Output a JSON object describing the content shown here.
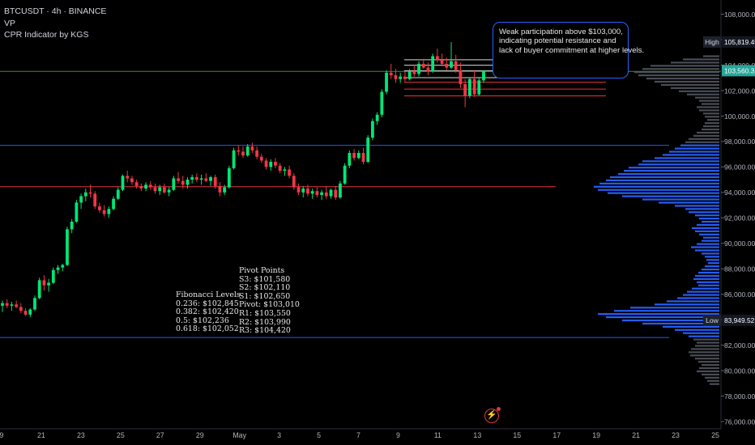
{
  "legend": {
    "symbol_line": "BTCUSDT · 4h · BINANCE",
    "indicator_vp": "VP",
    "indicator_cpr": "CPR Indicator by KGS"
  },
  "annotation": {
    "lines": [
      "Weak participation above $103,000,",
      "indicating potential resistance and",
      "lack of buyer commitment at higher levels."
    ]
  },
  "fibonacci": {
    "title": "Fibonacci Levels",
    "lines": [
      "0.236: $102,845",
      "0.382: $102,420",
      "0.5: $102,236",
      "0.618: $102,052"
    ]
  },
  "pivots": {
    "title": "Pivot Points",
    "lines": [
      "S3: $101,580",
      "S2: $102,110",
      "S1: $102,650",
      "Pivot: $103,010",
      "R1: $103,550",
      "R2: $103,990",
      "R3: $104,420"
    ]
  },
  "chart_data": {
    "type": "candlestick",
    "symbol": "BTCUSDT",
    "interval": "4h",
    "exchange": "BINANCE",
    "y_axis": {
      "range": [
        75900,
        109000
      ],
      "ticks": [
        76000,
        78000,
        80000,
        82000,
        84000,
        86000,
        88000,
        90000,
        92000,
        94000,
        96000,
        98000,
        100000,
        102000,
        104000,
        106000,
        108000
      ],
      "tick_labels": [
        "76,000.00",
        "78,000.00",
        "80,000.00",
        "82,000.00",
        "84,000.00",
        "86,000.00",
        "88,000.00",
        "90,000.00",
        "92,000.00",
        "94,000.00",
        "96,000.00",
        "98,000.00",
        "100,000.00",
        "102,000.00",
        "104,000.00",
        "106,000.00",
        "108,000.00"
      ]
    },
    "x_axis": {
      "labels": [
        "9",
        "21",
        "23",
        "25",
        "27",
        "29",
        "May",
        "3",
        "5",
        "7",
        "9",
        "11",
        "13",
        "15",
        "17",
        "19",
        "21",
        "23",
        "25"
      ]
    },
    "price_tags": [
      {
        "label": "High",
        "value": 105819.45,
        "text": "105,819.45",
        "color": "#131722"
      },
      {
        "label": "",
        "value": 103560.31,
        "text": "103,560.31",
        "color": "#26a69a"
      },
      {
        "label": "Low",
        "value": 83949.52,
        "text": "83,949.52",
        "color": "#131722"
      }
    ],
    "horizontal_lines": [
      {
        "value": 104420,
        "color": "#e6e6e6",
        "extends": "partial"
      },
      {
        "value": 103990,
        "color": "#e6e6e6",
        "extends": "partial"
      },
      {
        "value": 103550,
        "color": "#e6e6e6",
        "extends": "partial"
      },
      {
        "value": 103500,
        "color": "#4caf50",
        "extends": "full"
      },
      {
        "value": 103010,
        "color": "#e6e6e6",
        "extends": "partial"
      },
      {
        "value": 102650,
        "color": "#f23645",
        "extends": "partial"
      },
      {
        "value": 102110,
        "color": "#f23645",
        "extends": "partial"
      },
      {
        "value": 101580,
        "color": "#f23645",
        "extends": "partial"
      },
      {
        "value": 97700,
        "color": "#2962ff",
        "extends": "full"
      },
      {
        "value": 94450,
        "color": "#f23645",
        "extends": "full"
      },
      {
        "value": 82600,
        "color": "#2962ff",
        "extends": "full"
      }
    ],
    "colors": {
      "up": "#00e676",
      "down": "#f23645",
      "volume_profile": "#2962ff",
      "volume_profile_dim": "#5d606b"
    },
    "ohlc": [
      [
        85100,
        85500,
        84600,
        85300
      ],
      [
        85300,
        85600,
        84900,
        85100
      ],
      [
        85100,
        85400,
        84700,
        85200
      ],
      [
        85200,
        85500,
        84900,
        85000
      ],
      [
        85000,
        85300,
        84500,
        84700
      ],
      [
        84700,
        84900,
        84300,
        84400
      ],
      [
        84400,
        84900,
        84200,
        84800
      ],
      [
        84800,
        85900,
        84700,
        85700
      ],
      [
        85700,
        87300,
        85600,
        87100
      ],
      [
        87100,
        87500,
        86300,
        86700
      ],
      [
        86700,
        87200,
        86200,
        86900
      ],
      [
        86900,
        88100,
        86800,
        87900
      ],
      [
        87900,
        88300,
        87600,
        88100
      ],
      [
        88100,
        88400,
        87800,
        88300
      ],
      [
        88300,
        91300,
        88200,
        91100
      ],
      [
        91100,
        91900,
        90800,
        91700
      ],
      [
        91700,
        93400,
        91600,
        93200
      ],
      [
        93200,
        93900,
        92700,
        93700
      ],
      [
        93700,
        94300,
        93300,
        94000
      ],
      [
        94000,
        94600,
        93600,
        93900
      ],
      [
        93900,
        94100,
        92700,
        92900
      ],
      [
        92900,
        93200,
        92400,
        92600
      ],
      [
        92600,
        93000,
        92100,
        92300
      ],
      [
        92300,
        92900,
        92000,
        92700
      ],
      [
        92700,
        93700,
        92600,
        93500
      ],
      [
        93500,
        94400,
        93400,
        94200
      ],
      [
        94200,
        95400,
        94100,
        95300
      ],
      [
        95300,
        95700,
        94800,
        95100
      ],
      [
        95100,
        95300,
        94600,
        94800
      ],
      [
        94800,
        95000,
        94300,
        94500
      ],
      [
        94500,
        94700,
        94100,
        94300
      ],
      [
        94300,
        94800,
        94100,
        94600
      ],
      [
        94600,
        94900,
        94200,
        94400
      ],
      [
        94400,
        94700,
        93900,
        94100
      ],
      [
        94100,
        94600,
        93800,
        94400
      ],
      [
        94400,
        94700,
        93900,
        94000
      ],
      [
        94000,
        94400,
        93700,
        94200
      ],
      [
        94200,
        95300,
        94100,
        95100
      ],
      [
        95100,
        95600,
        94700,
        94900
      ],
      [
        94900,
        95300,
        94300,
        94600
      ],
      [
        94600,
        95200,
        94300,
        95000
      ],
      [
        95000,
        95400,
        94700,
        95200
      ],
      [
        95200,
        95500,
        94800,
        95000
      ],
      [
        95000,
        95400,
        94600,
        95100
      ],
      [
        95100,
        95500,
        94800,
        94900
      ],
      [
        94900,
        95300,
        94500,
        95200
      ],
      [
        95200,
        95400,
        94300,
        94500
      ],
      [
        94500,
        94800,
        93700,
        94000
      ],
      [
        94000,
        94600,
        93800,
        94400
      ],
      [
        94400,
        96100,
        94300,
        95900
      ],
      [
        95900,
        97500,
        95800,
        97300
      ],
      [
        97300,
        97700,
        96900,
        97200
      ],
      [
        97200,
        97600,
        96700,
        96900
      ],
      [
        96900,
        97800,
        96800,
        97600
      ],
      [
        97600,
        97900,
        97100,
        97300
      ],
      [
        97300,
        97600,
        96600,
        96800
      ],
      [
        96800,
        97000,
        96300,
        96500
      ],
      [
        96500,
        96700,
        95800,
        96000
      ],
      [
        96000,
        96600,
        95700,
        96400
      ],
      [
        96400,
        96700,
        95900,
        96100
      ],
      [
        96100,
        96300,
        95500,
        95700
      ],
      [
        95700,
        96000,
        95300,
        95800
      ],
      [
        95800,
        96100,
        95100,
        95300
      ],
      [
        95300,
        95500,
        94200,
        94400
      ],
      [
        94400,
        94700,
        93800,
        94000
      ],
      [
        94000,
        94500,
        93600,
        94300
      ],
      [
        94300,
        94600,
        93700,
        93900
      ],
      [
        93900,
        94300,
        93500,
        94100
      ],
      [
        94100,
        94400,
        93600,
        93800
      ],
      [
        93800,
        94200,
        93400,
        94000
      ],
      [
        94000,
        94500,
        93500,
        93700
      ],
      [
        93700,
        94300,
        93500,
        94200
      ],
      [
        94200,
        94500,
        93400,
        93600
      ],
      [
        93600,
        94900,
        93500,
        94700
      ],
      [
        94700,
        96300,
        94600,
        96100
      ],
      [
        96100,
        97300,
        95900,
        97100
      ],
      [
        97100,
        97400,
        96500,
        96700
      ],
      [
        96700,
        97300,
        96600,
        97100
      ],
      [
        97100,
        97500,
        96200,
        96400
      ],
      [
        96400,
        98500,
        96300,
        98300
      ],
      [
        98300,
        99800,
        98100,
        99600
      ],
      [
        99600,
        100300,
        99300,
        100100
      ],
      [
        100100,
        102100,
        99900,
        101900
      ],
      [
        101900,
        103600,
        101700,
        103400
      ],
      [
        103400,
        104100,
        102900,
        103200
      ],
      [
        103200,
        103700,
        102600,
        102900
      ],
      [
        102900,
        103400,
        102600,
        103100
      ],
      [
        103100,
        103500,
        102700,
        102900
      ],
      [
        102900,
        103700,
        102800,
        103500
      ],
      [
        103500,
        104000,
        103100,
        103300
      ],
      [
        103300,
        104300,
        103100,
        104100
      ],
      [
        104100,
        104500,
        103700,
        103800
      ],
      [
        103800,
        104200,
        103200,
        103500
      ],
      [
        103500,
        104900,
        103400,
        104700
      ],
      [
        104700,
        105300,
        104200,
        104400
      ],
      [
        104400,
        104900,
        103900,
        104100
      ],
      [
        104100,
        104600,
        103600,
        103800
      ],
      [
        103800,
        105800,
        103700,
        104300
      ],
      [
        104300,
        104800,
        103400,
        103600
      ],
      [
        103600,
        104200,
        102200,
        102500
      ],
      [
        102500,
        102900,
        100700,
        101600
      ],
      [
        101600,
        103000,
        101400,
        102900
      ],
      [
        102900,
        103600,
        101500,
        101700
      ],
      [
        101700,
        103000,
        101600,
        102800
      ],
      [
        102800,
        103600,
        102600,
        103560
      ]
    ],
    "volume_profile": [
      [
        104700,
        20,
        "dim"
      ],
      [
        104450,
        45,
        "dim"
      ],
      [
        104200,
        60,
        "dim"
      ],
      [
        103950,
        85,
        "dim"
      ],
      [
        103700,
        95,
        "dim"
      ],
      [
        103450,
        105,
        "dim"
      ],
      [
        103200,
        100,
        "dim"
      ],
      [
        102950,
        90,
        "dim"
      ],
      [
        102700,
        80,
        "dim"
      ],
      [
        102450,
        72,
        "dim"
      ],
      [
        102200,
        60,
        "dim"
      ],
      [
        101950,
        50,
        "dim"
      ],
      [
        101700,
        40,
        "dim"
      ],
      [
        101450,
        30,
        "dim"
      ],
      [
        101200,
        25,
        "dim"
      ],
      [
        100950,
        22,
        "dim"
      ],
      [
        100700,
        28,
        "dim"
      ],
      [
        100450,
        25,
        "dim"
      ],
      [
        100200,
        20,
        "dim"
      ],
      [
        99950,
        18,
        "dim"
      ],
      [
        99700,
        15,
        "dim"
      ],
      [
        99450,
        18,
        "dim"
      ],
      [
        99200,
        20,
        "dim"
      ],
      [
        98950,
        22,
        "dim"
      ],
      [
        98700,
        28,
        "dim"
      ],
      [
        98450,
        32,
        "dim"
      ],
      [
        98200,
        38,
        "dim"
      ],
      [
        97950,
        42,
        "dim"
      ],
      [
        97700,
        48,
        "blue"
      ],
      [
        97450,
        55,
        "blue"
      ],
      [
        97200,
        62,
        "blue"
      ],
      [
        96950,
        70,
        "blue"
      ],
      [
        96700,
        80,
        "blue"
      ],
      [
        96450,
        95,
        "blue"
      ],
      [
        96200,
        100,
        "blue"
      ],
      [
        95950,
        112,
        "blue"
      ],
      [
        95700,
        118,
        "blue"
      ],
      [
        95450,
        125,
        "blue"
      ],
      [
        95200,
        135,
        "blue"
      ],
      [
        94950,
        140,
        "blue"
      ],
      [
        94700,
        148,
        "blue"
      ],
      [
        94450,
        155,
        "blue"
      ],
      [
        94200,
        150,
        "blue"
      ],
      [
        93950,
        138,
        "blue"
      ],
      [
        93700,
        120,
        "blue"
      ],
      [
        93450,
        95,
        "blue"
      ],
      [
        93200,
        75,
        "blue"
      ],
      [
        92950,
        55,
        "blue"
      ],
      [
        92700,
        42,
        "blue"
      ],
      [
        92450,
        38,
        "blue"
      ],
      [
        92200,
        30,
        "blue"
      ],
      [
        91950,
        25,
        "blue"
      ],
      [
        91700,
        22,
        "blue"
      ],
      [
        91450,
        28,
        "blue"
      ],
      [
        91200,
        34,
        "blue"
      ],
      [
        90950,
        30,
        "blue"
      ],
      [
        90700,
        25,
        "blue"
      ],
      [
        90450,
        20,
        "blue"
      ],
      [
        90200,
        22,
        "blue"
      ],
      [
        89950,
        28,
        "blue"
      ],
      [
        89700,
        35,
        "blue"
      ],
      [
        89450,
        30,
        "blue"
      ],
      [
        89200,
        22,
        "blue"
      ],
      [
        88950,
        18,
        "blue"
      ],
      [
        88700,
        16,
        "blue"
      ],
      [
        88450,
        14,
        "blue"
      ],
      [
        88200,
        18,
        "blue"
      ],
      [
        87950,
        22,
        "blue"
      ],
      [
        87700,
        26,
        "blue"
      ],
      [
        87450,
        30,
        "blue"
      ],
      [
        87200,
        32,
        "blue"
      ],
      [
        86950,
        28,
        "blue"
      ],
      [
        86700,
        26,
        "blue"
      ],
      [
        86450,
        34,
        "blue"
      ],
      [
        86200,
        40,
        "blue"
      ],
      [
        85950,
        45,
        "blue"
      ],
      [
        85700,
        52,
        "blue"
      ],
      [
        85450,
        65,
        "blue"
      ],
      [
        85200,
        80,
        "blue"
      ],
      [
        84950,
        110,
        "blue"
      ],
      [
        84700,
        130,
        "blue"
      ],
      [
        84450,
        150,
        "blue"
      ],
      [
        84200,
        140,
        "blue"
      ],
      [
        83950,
        120,
        "blue"
      ],
      [
        83700,
        95,
        "blue"
      ],
      [
        83450,
        70,
        "blue"
      ],
      [
        83200,
        55,
        "blue"
      ],
      [
        82950,
        45,
        "blue"
      ],
      [
        82700,
        38,
        "blue"
      ],
      [
        82450,
        32,
        "dim"
      ],
      [
        82200,
        28,
        "dim"
      ],
      [
        81950,
        30,
        "dim"
      ],
      [
        81700,
        35,
        "dim"
      ],
      [
        81450,
        38,
        "dim"
      ],
      [
        81200,
        36,
        "dim"
      ],
      [
        80950,
        30,
        "dim"
      ],
      [
        80700,
        26,
        "dim"
      ],
      [
        80450,
        22,
        "dim"
      ],
      [
        80200,
        25,
        "dim"
      ],
      [
        79950,
        28,
        "dim"
      ],
      [
        79700,
        22,
        "dim"
      ],
      [
        79450,
        18,
        "dim"
      ],
      [
        79200,
        15,
        "dim"
      ],
      [
        78950,
        12,
        "dim"
      ]
    ]
  }
}
